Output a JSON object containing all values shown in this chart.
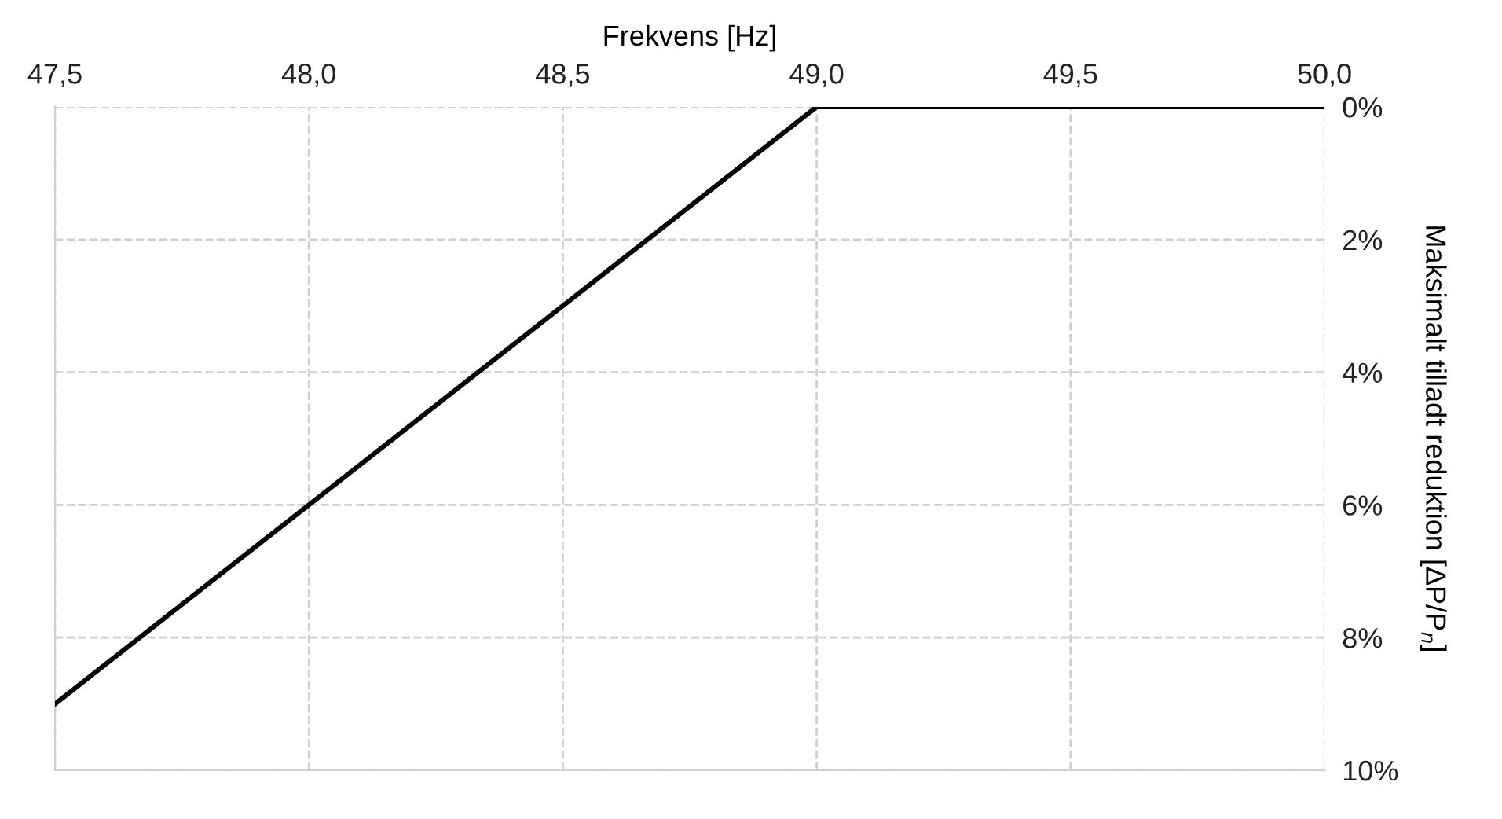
{
  "chart_data": {
    "type": "line",
    "xlabel": "Frekvens [Hz]",
    "ylabel": "Maksimalt tilladt reduktion [ΔP/P$_{n}$]",
    "x": [
      47.5,
      49.0,
      50.0
    ],
    "series": [
      {
        "color": "#000000",
        "values": [
          9,
          0,
          0
        ]
      }
    ],
    "xlim": [
      47.5,
      50.0
    ],
    "xticks": [
      {
        "value": 47.5,
        "label": "47,5"
      },
      {
        "value": 48.0,
        "label": "48,0"
      },
      {
        "value": 48.5,
        "label": "48,5"
      },
      {
        "value": 49.0,
        "label": "49,0"
      },
      {
        "value": 49.5,
        "label": "49,5"
      },
      {
        "value": 50.0,
        "label": "50,0"
      }
    ],
    "ylim": [
      10,
      0
    ],
    "yticks": [
      {
        "value": 0,
        "label": "0%"
      },
      {
        "value": 2,
        "label": "2%"
      },
      {
        "value": 4,
        "label": "4%"
      },
      {
        "value": 6,
        "label": "6%"
      },
      {
        "value": 8,
        "label": "8%"
      },
      {
        "value": 10,
        "label": "10%"
      }
    ],
    "grid": true,
    "line_style": "solid",
    "marker": "none"
  }
}
